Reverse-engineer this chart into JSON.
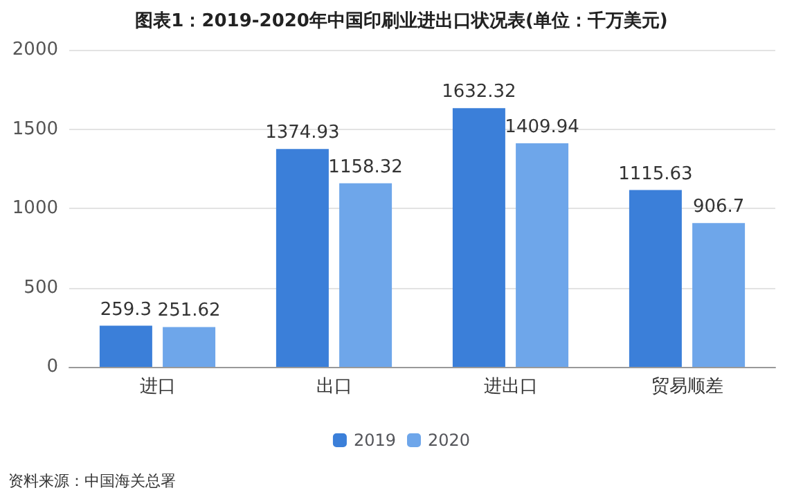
{
  "chart_data": {
    "type": "bar",
    "title": "图表1：2019-2020年中国印刷业进出口状况表(单位：千万美元)",
    "categories": [
      "进口",
      "出口",
      "进出口",
      "贸易顺差"
    ],
    "series": [
      {
        "name": "2019",
        "color": "#3b7fd9",
        "values": [
          259.3,
          1374.93,
          1632.32,
          1115.63
        ]
      },
      {
        "name": "2020",
        "color": "#6ea6ea",
        "values": [
          251.62,
          1158.32,
          1409.94,
          906.7
        ]
      }
    ],
    "ylim": [
      0,
      2000
    ],
    "yticks": [
      0,
      500,
      1000,
      1500,
      2000
    ],
    "grid": "y",
    "legend": "bottom",
    "data_labels": true,
    "annotations": [
      "资料来源：中国海关总署"
    ]
  }
}
